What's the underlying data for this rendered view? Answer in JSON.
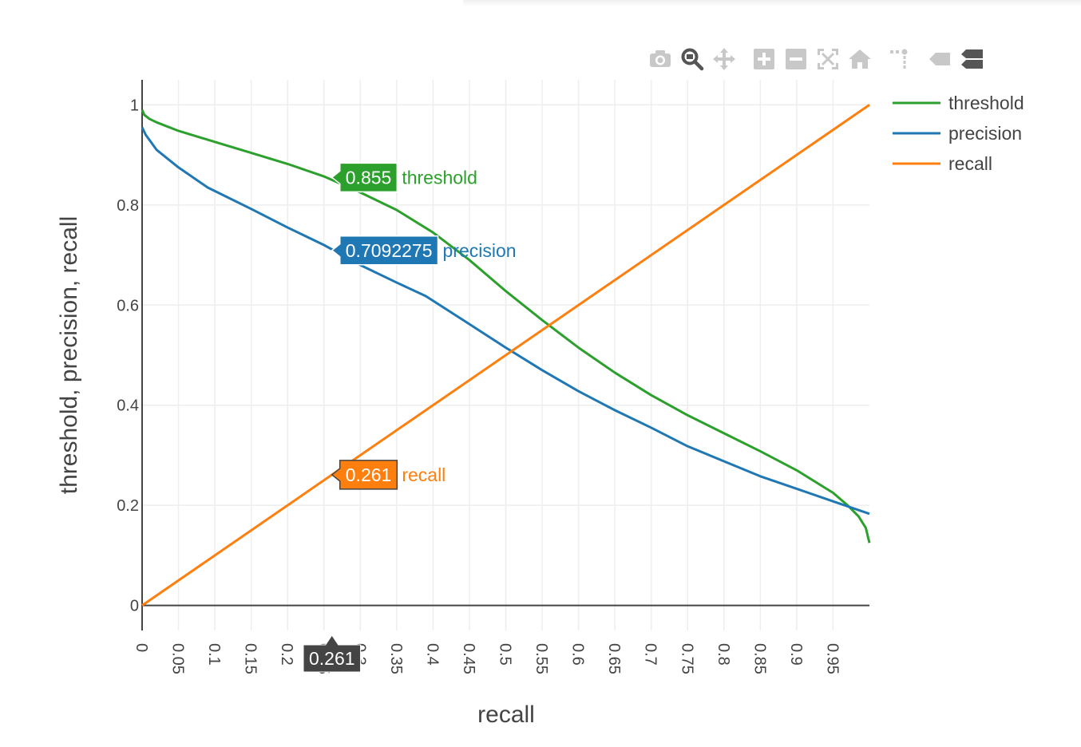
{
  "modebar": {
    "buttons": [
      {
        "name": "camera-icon",
        "title": "Download plot as a png",
        "active": false
      },
      {
        "name": "zoom-icon",
        "title": "Zoom",
        "active": true
      },
      {
        "name": "pan-icon",
        "title": "Pan",
        "active": false
      },
      {
        "name": "zoom-in-icon",
        "title": "Zoom in",
        "active": false
      },
      {
        "name": "zoom-out-icon",
        "title": "Zoom out",
        "active": false
      },
      {
        "name": "autoscale-icon",
        "title": "Autoscale",
        "active": false
      },
      {
        "name": "reset-axes-icon",
        "title": "Reset axes",
        "active": false
      },
      {
        "name": "spike-lines-icon",
        "title": "Toggle Spike Lines",
        "active": false
      },
      {
        "name": "hover-closest-icon",
        "title": "Show closest data on hover",
        "active": false
      },
      {
        "name": "hover-compare-icon",
        "title": "Compare data on hover",
        "active": true
      }
    ]
  },
  "chart_data": {
    "type": "line",
    "xlabel": "recall",
    "ylabel": "threshold, precision, recall",
    "xlim": [
      0,
      1
    ],
    "ylim": [
      -0.05,
      1.05
    ],
    "x_ticks": [
      "0",
      "0.05",
      "0.1",
      "0.15",
      "0.2",
      "0.25",
      "0.3",
      "0.35",
      "0.4",
      "0.45",
      "0.5",
      "0.55",
      "0.6",
      "0.65",
      "0.7",
      "0.75",
      "0.8",
      "0.85",
      "0.9",
      "0.95"
    ],
    "y_ticks": [
      "0",
      "0.2",
      "0.4",
      "0.6",
      "0.8",
      "1"
    ],
    "grid": true,
    "legend_position": "top-right",
    "series": [
      {
        "name": "threshold",
        "color": "#2ca02c",
        "x": [
          0,
          0.003,
          0.01,
          0.02,
          0.05,
          0.1,
          0.15,
          0.2,
          0.25,
          0.3,
          0.35,
          0.4,
          0.45,
          0.5,
          0.55,
          0.6,
          0.65,
          0.7,
          0.75,
          0.8,
          0.85,
          0.9,
          0.95,
          0.97,
          0.985,
          0.995,
          1.0
        ],
        "y": [
          0.99,
          0.98,
          0.972,
          0.965,
          0.948,
          0.926,
          0.904,
          0.882,
          0.857,
          0.825,
          0.79,
          0.745,
          0.69,
          0.628,
          0.57,
          0.515,
          0.465,
          0.42,
          0.38,
          0.344,
          0.308,
          0.27,
          0.225,
          0.2,
          0.178,
          0.155,
          0.125
        ]
      },
      {
        "name": "precision",
        "color": "#1f77b4",
        "x": [
          0,
          0.005,
          0.01,
          0.02,
          0.05,
          0.09,
          0.15,
          0.2,
          0.25,
          0.3,
          0.35,
          0.39,
          0.45,
          0.5,
          0.55,
          0.6,
          0.65,
          0.7,
          0.75,
          0.8,
          0.85,
          0.9,
          0.95,
          1.0
        ],
        "y": [
          0.955,
          0.94,
          0.93,
          0.91,
          0.875,
          0.835,
          0.792,
          0.755,
          0.72,
          0.68,
          0.645,
          0.618,
          0.562,
          0.515,
          0.47,
          0.428,
          0.39,
          0.355,
          0.318,
          0.288,
          0.258,
          0.233,
          0.208,
          0.183
        ]
      },
      {
        "name": "recall",
        "color": "#ff7f0e",
        "x": [
          0,
          1
        ],
        "y": [
          0,
          1
        ]
      }
    ],
    "hover": {
      "x": 0.261,
      "x_label": "0.261",
      "labels": [
        {
          "series": "threshold",
          "value": "0.855",
          "y": 0.855
        },
        {
          "series": "precision",
          "value": "0.7092275",
          "y": 0.7092275
        },
        {
          "series": "recall",
          "value": "0.261",
          "y": 0.261
        }
      ]
    }
  }
}
